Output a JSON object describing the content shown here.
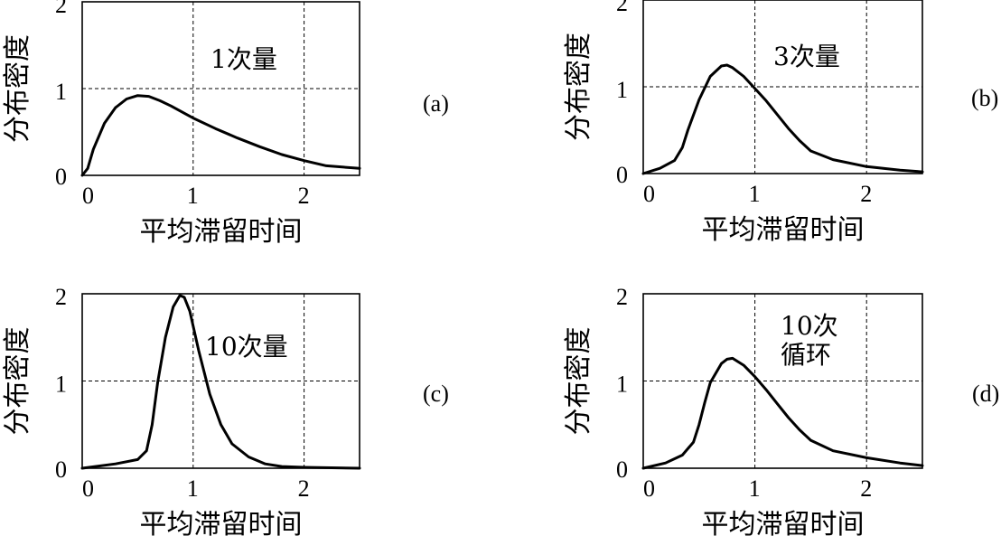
{
  "chart_data": [
    {
      "type": "line",
      "panel_label": "(a)",
      "annotation": [
        "1次量"
      ],
      "xlabel": "平均滞留时间",
      "ylabel": "分布密度",
      "xlim": [
        0,
        2.5
      ],
      "ylim": [
        0,
        2
      ],
      "x_ticks": [
        "0",
        "1",
        "2"
      ],
      "y_ticks": [
        "0",
        "1",
        "2"
      ],
      "grid": "dashed",
      "x": [
        0,
        0.05,
        0.1,
        0.2,
        0.3,
        0.4,
        0.5,
        0.6,
        0.7,
        0.8,
        1.0,
        1.2,
        1.4,
        1.6,
        1.8,
        2.0,
        2.2,
        2.5
      ],
      "y": [
        0,
        0.08,
        0.3,
        0.6,
        0.78,
        0.88,
        0.92,
        0.91,
        0.86,
        0.8,
        0.66,
        0.54,
        0.43,
        0.33,
        0.24,
        0.17,
        0.11,
        0.08
      ]
    },
    {
      "type": "line",
      "panel_label": "(b)",
      "annotation": [
        "3次量"
      ],
      "xlabel": "平均滞留时间",
      "ylabel": "分布密度",
      "xlim": [
        0,
        2.5
      ],
      "ylim": [
        0,
        2
      ],
      "x_ticks": [
        "0",
        "1",
        "2"
      ],
      "y_ticks": [
        "0",
        "1",
        "2"
      ],
      "grid": "dashed",
      "x": [
        0,
        0.15,
        0.28,
        0.35,
        0.4,
        0.5,
        0.6,
        0.7,
        0.75,
        0.8,
        0.9,
        1.0,
        1.1,
        1.2,
        1.3,
        1.4,
        1.5,
        1.7,
        2.0,
        2.3,
        2.5
      ],
      "y": [
        0,
        0.06,
        0.15,
        0.3,
        0.5,
        0.85,
        1.12,
        1.24,
        1.25,
        1.22,
        1.12,
        0.98,
        0.84,
        0.68,
        0.52,
        0.38,
        0.26,
        0.16,
        0.08,
        0.04,
        0.02
      ]
    },
    {
      "type": "line",
      "panel_label": "(c)",
      "annotation": [
        "10次量"
      ],
      "xlabel": "平均滞留时间",
      "ylabel": "分布密度",
      "xlim": [
        0,
        2.5
      ],
      "ylim": [
        0,
        2
      ],
      "x_ticks": [
        "0",
        "1",
        "2"
      ],
      "y_ticks": [
        "0",
        "1",
        "2"
      ],
      "grid": "dashed",
      "x": [
        0,
        0.3,
        0.5,
        0.58,
        0.63,
        0.68,
        0.75,
        0.82,
        0.88,
        0.92,
        0.97,
        1.05,
        1.15,
        1.25,
        1.35,
        1.5,
        1.65,
        1.8,
        2.0,
        2.5
      ],
      "y": [
        0,
        0.05,
        0.1,
        0.2,
        0.5,
        0.98,
        1.5,
        1.85,
        1.98,
        1.96,
        1.8,
        1.35,
        0.85,
        0.5,
        0.28,
        0.13,
        0.05,
        0.02,
        0.01,
        0.0
      ]
    },
    {
      "type": "line",
      "panel_label": "(d)",
      "annotation": [
        "10次",
        "循环"
      ],
      "xlabel": "平均滞留时间",
      "ylabel": "分布密度",
      "xlim": [
        0,
        2.5
      ],
      "ylim": [
        0,
        2
      ],
      "x_ticks": [
        "0",
        "1",
        "2"
      ],
      "y_ticks": [
        "0",
        "1",
        "2"
      ],
      "grid": "dashed",
      "x": [
        0,
        0.2,
        0.35,
        0.45,
        0.5,
        0.55,
        0.6,
        0.7,
        0.75,
        0.8,
        0.9,
        1.0,
        1.1,
        1.2,
        1.3,
        1.4,
        1.5,
        1.7,
        2.0,
        2.3,
        2.5
      ],
      "y": [
        0,
        0.06,
        0.15,
        0.3,
        0.5,
        0.75,
        0.98,
        1.2,
        1.25,
        1.26,
        1.18,
        1.05,
        0.9,
        0.74,
        0.58,
        0.44,
        0.32,
        0.2,
        0.12,
        0.06,
        0.03
      ]
    }
  ]
}
